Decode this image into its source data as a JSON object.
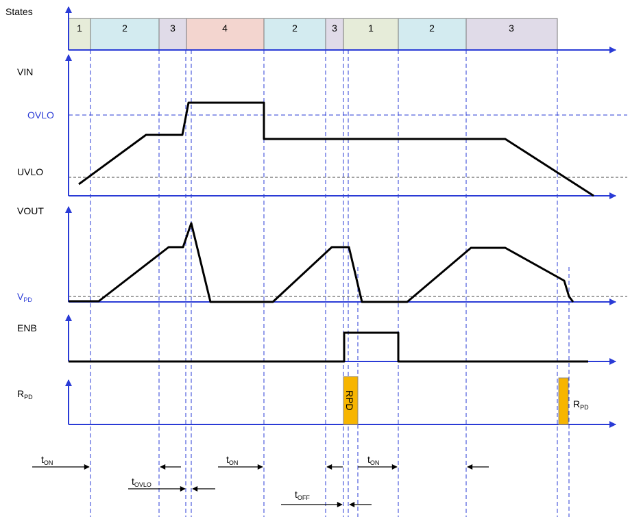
{
  "states": {
    "title": "States",
    "cells": [
      {
        "label": "1",
        "color": "#e6ecd9"
      },
      {
        "label": "2",
        "color": "#d3ebf0"
      },
      {
        "label": "3",
        "color": "#e0dbe8"
      },
      {
        "label": "4",
        "color": "#f3d5cf"
      },
      {
        "label": "2",
        "color": "#d3ebf0"
      },
      {
        "label": "3",
        "color": "#e0dbe8"
      },
      {
        "label": "1",
        "color": "#e6ecd9"
      },
      {
        "label": "2",
        "color": "#d3ebf0"
      },
      {
        "label": "3",
        "color": "#e0dbe8"
      }
    ]
  },
  "signals": {
    "vin": "VIN",
    "ovlo": "OVLO",
    "uvlo": "UVLO",
    "vout": "VOUT",
    "vpd_main": "V",
    "vpd_sub": "PD",
    "enb": "ENB",
    "rpd_main": "R",
    "rpd_sub": "PD"
  },
  "pulses": {
    "rpd_vertical": "RPD",
    "rpd_right_main": "R",
    "rpd_right_sub": "PD"
  },
  "timing": {
    "ton_main": "t",
    "ton_sub": "ON",
    "tovlo_sub": "OVLO",
    "toff_sub": "OFF"
  },
  "colors": {
    "axis": "#2a3bd6",
    "pulse": "#f7b500",
    "trace": "#000000"
  }
}
